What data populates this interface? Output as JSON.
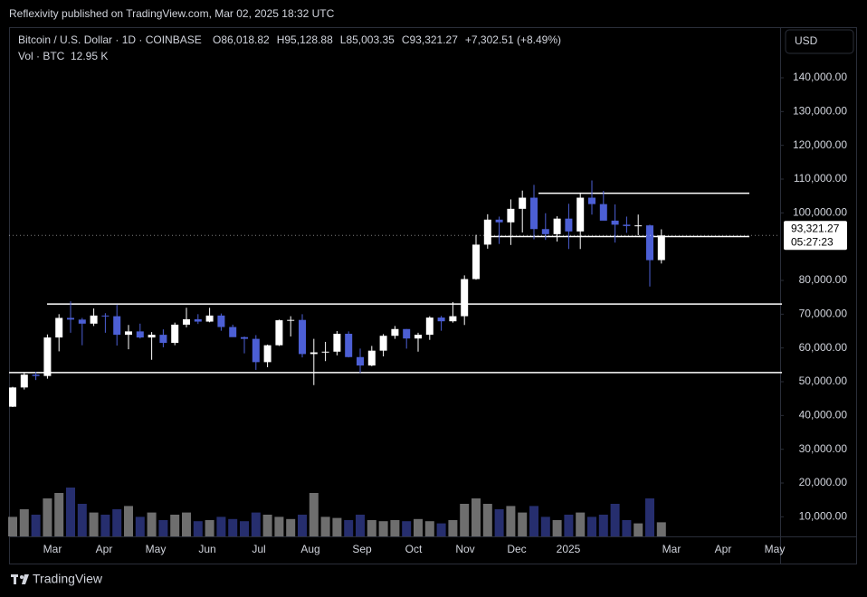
{
  "top_bar": {
    "text": "Reflexivity published on TradingView.com, Mar 02, 2025 18:32 UTC"
  },
  "footer": {
    "brand": "TradingView"
  },
  "chart_data": {
    "type": "candlestick",
    "header": {
      "symbol": "Bitcoin / U.S. Dollar · 1D · COINBASE",
      "ohlc": [
        "O86,018.82",
        "H95,128.88",
        "L85,003.35",
        "C93,321.27"
      ],
      "change": "+7,302.51 (+8.49%)",
      "volume_title": "Vol · BTC",
      "volume_value": "12.95 K"
    },
    "currency": "USD",
    "up_color": "#ffffff",
    "down_color": "#4c5fd5",
    "open": [
      42600,
      48300,
      52100,
      51700,
      63100,
      68900,
      68400,
      67200,
      69600,
      69400,
      63900,
      64900,
      63100,
      63900,
      61500,
      66900,
      68500,
      67800,
      69600,
      66200,
      63200,
      62700,
      55800,
      60800,
      68200,
      68300,
      58200,
      58700,
      58900,
      64200,
      57300,
      54800,
      59200,
      63600,
      65600,
      62800,
      63900,
      69000,
      67900,
      69400,
      80400,
      90600,
      98000,
      97200,
      101200,
      104500,
      95200,
      93700,
      98300,
      94500,
      104500,
      102600,
      97700,
      96500,
      96100,
      96300,
      86018.82
    ],
    "high": [
      48500,
      52800,
      52900,
      64000,
      70000,
      73800,
      68900,
      71700,
      70300,
      72800,
      66800,
      67200,
      64700,
      65500,
      67500,
      71900,
      70000,
      71900,
      70200,
      66900,
      63400,
      63800,
      61000,
      68400,
      69400,
      70000,
      62700,
      61800,
      65000,
      64900,
      59800,
      60600,
      64100,
      66500,
      65600,
      64500,
      69400,
      69500,
      73600,
      81500,
      93500,
      99600,
      98900,
      104000,
      106600,
      108300,
      99900,
      99000,
      102700,
      106000,
      109600,
      106500,
      102500,
      98900,
      99500,
      96500,
      95128.88
    ],
    "low": [
      42500,
      47700,
      50500,
      50900,
      59000,
      64500,
      60800,
      66500,
      64500,
      60700,
      59600,
      62800,
      56500,
      60200,
      60800,
      66100,
      67100,
      67600,
      65100,
      63400,
      58400,
      53500,
      54300,
      60600,
      63400,
      57200,
      49000,
      56100,
      57800,
      57200,
      52600,
      54600,
      57500,
      62700,
      59800,
      58900,
      62400,
      65100,
      67500,
      66800,
      80200,
      89400,
      90800,
      90500,
      94200,
      92200,
      92000,
      91500,
      89300,
      89300,
      99500,
      97800,
      91200,
      94100,
      93400,
      78200,
      85003.35
    ],
    "close": [
      48300,
      52100,
      51700,
      63100,
      68900,
      68400,
      67200,
      69600,
      69400,
      63900,
      64900,
      63100,
      63900,
      61500,
      66900,
      68500,
      67800,
      69600,
      66200,
      63200,
      62700,
      55800,
      60800,
      68200,
      68300,
      58200,
      58700,
      58900,
      64200,
      57300,
      54800,
      59200,
      63600,
      65600,
      62800,
      63900,
      69000,
      67900,
      69400,
      80400,
      90600,
      98000,
      97200,
      101200,
      104500,
      95200,
      93700,
      98300,
      94500,
      104500,
      102600,
      97700,
      96500,
      96100,
      96300,
      86000,
      93321.27
    ],
    "volume": [
      18000,
      25000,
      20000,
      35000,
      40000,
      45000,
      30000,
      22000,
      20000,
      25000,
      28000,
      18000,
      22000,
      15000,
      20000,
      22000,
      14000,
      15000,
      18000,
      16000,
      14000,
      22000,
      20000,
      18000,
      16000,
      20000,
      40000,
      18000,
      17000,
      15000,
      20000,
      15000,
      14000,
      15000,
      14000,
      16000,
      14000,
      12000,
      15000,
      30000,
      35000,
      30000,
      25000,
      28000,
      22000,
      28000,
      18000,
      15000,
      20000,
      22000,
      18000,
      20000,
      30000,
      15000,
      12000,
      35000,
      13000
    ],
    "volume_lim": [
      0,
      120000
    ],
    "ylim": [
      4200,
      155000
    ],
    "yticks": [
      {
        "value": 10000,
        "label": "10,000.00"
      },
      {
        "value": 20000,
        "label": "20,000.00"
      },
      {
        "value": 30000,
        "label": "30,000.00"
      },
      {
        "value": 40000,
        "label": "40,000.00"
      },
      {
        "value": 50000,
        "label": "50,000.00"
      },
      {
        "value": 60000,
        "label": "60,000.00"
      },
      {
        "value": 70000,
        "label": "70,000.00"
      },
      {
        "value": 80000,
        "label": "80,000.00"
      },
      {
        "value": 100000,
        "label": "100,000.00"
      },
      {
        "value": 110000,
        "label": "110,000.00"
      },
      {
        "value": 120000,
        "label": "120,000.00"
      },
      {
        "value": 130000,
        "label": "130,000.00"
      },
      {
        "value": 140000,
        "label": "140,000.00"
      }
    ],
    "last_price": {
      "value": 93321.27,
      "label": "93,321.27"
    },
    "countdown": "05:27:23",
    "levels": [
      105800,
      93000,
      73000,
      52700
    ],
    "x_labels": [
      "Mar",
      "Apr",
      "May",
      "Jun",
      "Jul",
      "Aug",
      "Sep",
      "Oct",
      "Nov",
      "Dec",
      "2025",
      null,
      "Mar",
      "Apr",
      "May"
    ]
  }
}
